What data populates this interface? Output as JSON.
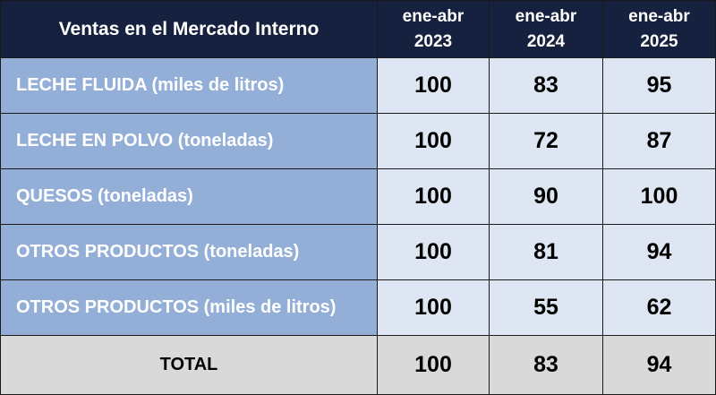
{
  "table": {
    "title": "Ventas en el Mercado Interno",
    "columns": [
      {
        "line1": "ene-abr",
        "line2": "2023"
      },
      {
        "line1": "ene-abr",
        "line2": "2024"
      },
      {
        "line1": "ene-abr",
        "line2": "2025"
      }
    ],
    "rows": [
      {
        "label": "LECHE FLUIDA (miles de litros)",
        "values": [
          "100",
          "83",
          "95"
        ]
      },
      {
        "label": "LECHE EN POLVO (toneladas)",
        "values": [
          "100",
          "72",
          "87"
        ]
      },
      {
        "label": "QUESOS (toneladas)",
        "values": [
          "100",
          "90",
          "100"
        ]
      },
      {
        "label": "OTROS PRODUCTOS (toneladas)",
        "values": [
          "100",
          "81",
          "94"
        ]
      },
      {
        "label": "OTROS PRODUCTOS (miles de litros)",
        "values": [
          "100",
          "55",
          "62"
        ]
      }
    ],
    "total": {
      "label": "TOTAL",
      "values": [
        "100",
        "83",
        "94"
      ]
    }
  },
  "colors": {
    "header_bg": "#16213f",
    "label_bg": "#93afd8",
    "value_bg": "#dde6f2",
    "total_bg": "#d9d9d9"
  }
}
